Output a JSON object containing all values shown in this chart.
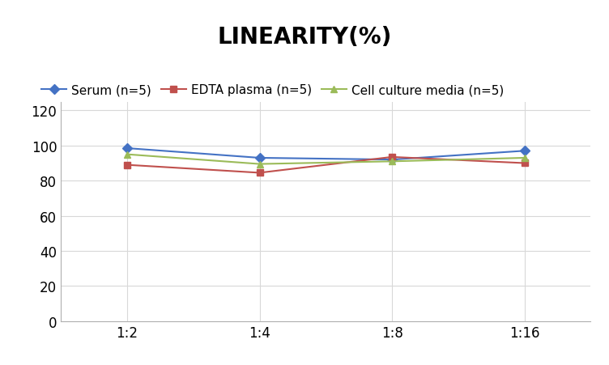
{
  "title": "LINEARITY(%)",
  "x_labels": [
    "1:2",
    "1:4",
    "1:8",
    "1:16"
  ],
  "x_positions": [
    0,
    1,
    2,
    3
  ],
  "series": [
    {
      "label": "Serum (n=5)",
      "values": [
        98.5,
        93.0,
        92.0,
        97.0
      ],
      "color": "#4472C4",
      "marker": "D",
      "marker_color": "#4472C4"
    },
    {
      "label": "EDTA plasma (n=5)",
      "values": [
        89.0,
        84.5,
        93.5,
        90.0
      ],
      "color": "#C0504D",
      "marker": "s",
      "marker_color": "#C0504D"
    },
    {
      "label": "Cell culture media (n=5)",
      "values": [
        95.0,
        89.5,
        91.0,
        93.0
      ],
      "color": "#9BBB59",
      "marker": "^",
      "marker_color": "#9BBB59"
    }
  ],
  "ylim": [
    0,
    125
  ],
  "yticks": [
    0,
    20,
    40,
    60,
    80,
    100,
    120
  ],
  "title_fontsize": 20,
  "legend_fontsize": 11,
  "tick_fontsize": 12,
  "background_color": "#ffffff",
  "grid_color": "#d8d8d8"
}
